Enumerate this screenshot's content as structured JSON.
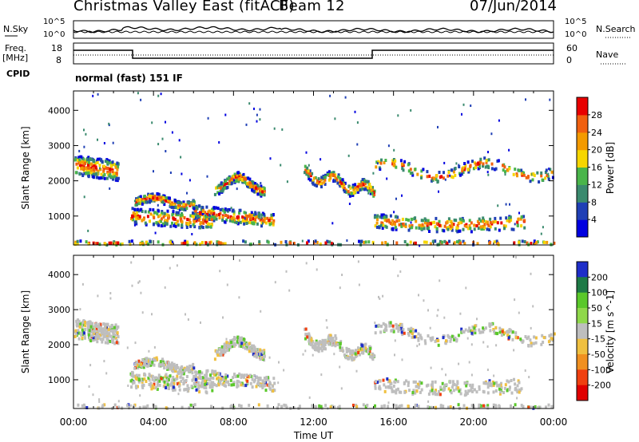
{
  "header": {
    "title": "Christmas Valley East (fitACF)",
    "beam": "Beam 12",
    "date": "07/Jun/2014"
  },
  "left_labels": {
    "nsky": "N.Sky",
    "freq": "Freq.",
    "mhz": "[MHz]",
    "cpid": "CPID"
  },
  "right_labels": {
    "nsearch": "N.Search",
    "nave": "Nave"
  },
  "cpid_text": "normal (fast) 151 IF",
  "noise_panel": {
    "left_ticks": [
      "10^5",
      "10^0"
    ],
    "right_ticks": [
      "10^5",
      "10^0"
    ]
  },
  "freq_panel": {
    "left_ticks": [
      "18",
      "8"
    ],
    "right_ticks": [
      "60",
      "0"
    ]
  },
  "colors": {
    "frame": "#000000",
    "line": "#000000"
  },
  "chart_data": [
    {
      "type": "heatmap",
      "name": "power",
      "ylabel": "Slant Range [km]",
      "xlabel": "",
      "yticks": [
        1000,
        2000,
        3000,
        4000
      ],
      "ylim": [
        180,
        4550
      ],
      "colorbar": {
        "label": "Power [dB]",
        "ticks": [
          4,
          8,
          12,
          16,
          20,
          24,
          28
        ],
        "colors": [
          "#0000e0",
          "#1f3fb5",
          "#3a8a6e",
          "#49b54a",
          "#f6d600",
          "#f39a00",
          "#f06010",
          "#e80000"
        ]
      }
    },
    {
      "type": "heatmap",
      "name": "velocity",
      "ylabel": "Slant Range [km]",
      "xlabel": "Time UT",
      "yticks": [
        1000,
        2000,
        3000,
        4000
      ],
      "ylim": [
        180,
        4550
      ],
      "xticks": [
        "00:00",
        "04:00",
        "08:00",
        "12:00",
        "16:00",
        "20:00",
        "00:00"
      ],
      "colorbar": {
        "label": "Velocity [m s^-1]",
        "ticks": [
          200,
          100,
          50,
          15,
          -15,
          -50,
          -100,
          -200
        ],
        "colors": [
          "#1e2ec8",
          "#1e7a46",
          "#5ac82a",
          "#8fd84a",
          "#bebebe",
          "#f0c040",
          "#f09020",
          "#f04010",
          "#e00000"
        ]
      }
    }
  ]
}
